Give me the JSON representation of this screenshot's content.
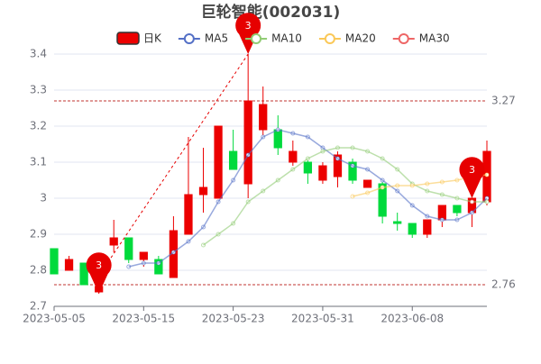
{
  "chart_data": {
    "type": "candlestick",
    "title": "巨轮智能(002031)",
    "categories": [
      "2023-05-05",
      null,
      null,
      null,
      null,
      null,
      "2023-05-15",
      null,
      null,
      null,
      null,
      null,
      "2023-05-23",
      null,
      null,
      null,
      null,
      null,
      "2023-05-31",
      null,
      null,
      null,
      null,
      null,
      "2023-06-08",
      null,
      null,
      null,
      null,
      null
    ],
    "ylim": [
      2.7,
      3.4
    ],
    "yticks": [
      2.7,
      2.8,
      2.9,
      3,
      3.1,
      3.2,
      3.3,
      3.4
    ],
    "grid": true,
    "rise_color": "#ec0000",
    "fall_color": "#00da3c",
    "series": [
      {
        "name": "日K",
        "color": "#ec0000",
        "open": [
          2.86,
          2.8,
          2.82,
          2.74,
          2.87,
          2.89,
          2.83,
          2.83,
          2.78,
          2.9,
          3.01,
          3.0,
          3.13,
          3.04,
          3.19,
          3.19,
          3.1,
          3.1,
          3.05,
          3.06,
          3.1,
          3.03,
          3.04,
          2.935,
          2.93,
          2.9,
          2.94,
          2.98,
          2.96,
          2.99
        ],
        "close": [
          2.79,
          2.83,
          2.76,
          2.755,
          2.89,
          2.83,
          2.85,
          2.79,
          2.91,
          3.01,
          3.03,
          3.2,
          3.08,
          3.27,
          3.26,
          3.14,
          3.13,
          3.07,
          3.09,
          3.12,
          3.05,
          3.05,
          2.95,
          2.93,
          2.9,
          2.94,
          2.98,
          2.96,
          3.0,
          3.13
        ],
        "high": [
          2.86,
          2.84,
          2.82,
          2.76,
          2.94,
          2.89,
          2.85,
          2.84,
          2.95,
          3.17,
          3.14,
          3.2,
          3.19,
          3.4,
          3.31,
          3.23,
          3.16,
          3.11,
          3.1,
          3.13,
          3.11,
          3.05,
          3.05,
          2.96,
          2.93,
          2.94,
          2.98,
          2.98,
          3.0,
          3.16
        ],
        "low": [
          2.79,
          2.8,
          2.76,
          2.735,
          2.85,
          2.82,
          2.81,
          2.79,
          2.78,
          2.9,
          2.96,
          3.0,
          3.08,
          3.0,
          3.17,
          3.12,
          3.09,
          3.04,
          3.04,
          3.03,
          3.04,
          3.03,
          2.93,
          2.91,
          2.89,
          2.89,
          2.92,
          2.95,
          2.92,
          2.98
        ]
      },
      {
        "name": "MA5",
        "color": "#5470c6",
        "values": [
          null,
          null,
          null,
          null,
          null,
          2.81,
          2.82,
          2.82,
          2.85,
          2.88,
          2.92,
          2.99,
          3.05,
          3.12,
          3.17,
          3.19,
          3.18,
          3.17,
          3.14,
          3.11,
          3.09,
          3.08,
          3.05,
          3.02,
          2.98,
          2.95,
          2.94,
          2.94,
          2.96,
          3.0
        ]
      },
      {
        "name": "MA10",
        "color": "#91cc75",
        "values": [
          null,
          null,
          null,
          null,
          null,
          null,
          null,
          null,
          null,
          null,
          2.87,
          2.9,
          2.93,
          2.99,
          3.02,
          3.05,
          3.08,
          3.11,
          3.13,
          3.14,
          3.14,
          3.13,
          3.11,
          3.08,
          3.04,
          3.02,
          3.01,
          3.0,
          2.99,
          2.99
        ]
      },
      {
        "name": "MA20",
        "color": "#fac858",
        "values": [
          null,
          null,
          null,
          null,
          null,
          null,
          null,
          null,
          null,
          null,
          null,
          null,
          null,
          null,
          null,
          null,
          null,
          null,
          null,
          null,
          3.005,
          3.015,
          3.03,
          3.035,
          3.035,
          3.04,
          3.045,
          3.05,
          3.06,
          3.065
        ]
      },
      {
        "name": "MA30",
        "color": "#ee6666",
        "values": [
          null,
          null,
          null,
          null,
          null,
          null,
          null,
          null,
          null,
          null,
          null,
          null,
          null,
          null,
          null,
          null,
          null,
          null,
          null,
          null,
          null,
          null,
          null,
          null,
          null,
          null,
          null,
          null,
          2.99,
          null
        ]
      }
    ],
    "mark_points": [
      {
        "label": "3",
        "value": 3.4
      },
      {
        "label": "3",
        "value": 2.735
      },
      {
        "label": "3",
        "value": 3.0
      }
    ],
    "mark_lines": [
      3.27,
      2.76
    ]
  }
}
